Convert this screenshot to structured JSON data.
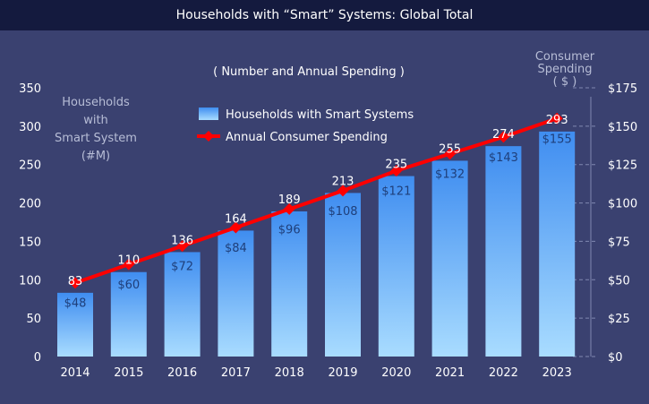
{
  "title": "Households with “Smart” Systems: Global Total",
  "chart_data": {
    "type": "bar",
    "title": "Households with “Smart” Systems: Global Total",
    "subtitle": "( Number and Annual Spending )",
    "categories": [
      "2014",
      "2015",
      "2016",
      "2017",
      "2018",
      "2019",
      "2020",
      "2021",
      "2022",
      "2023"
    ],
    "series": [
      {
        "name": "Households with Smart Systems",
        "type": "bar",
        "axis": "left",
        "values": [
          83,
          110,
          136,
          164,
          189,
          213,
          235,
          255,
          274,
          293
        ],
        "labels": [
          "83",
          "110",
          "136",
          "164",
          "189",
          "213",
          "235",
          "255",
          "274",
          "293"
        ]
      },
      {
        "name": "Annual Consumer Spending",
        "type": "line",
        "axis": "right",
        "values": [
          48,
          60,
          72,
          84,
          96,
          108,
          121,
          132,
          143,
          155
        ],
        "labels": [
          "$48",
          "$60",
          "$72",
          "$84",
          "$96",
          "$108",
          "$121",
          "$132",
          "$143",
          "$155"
        ]
      }
    ],
    "left_axis": {
      "label_lines": [
        "Households",
        "with",
        "Smart System",
        "(#M)"
      ],
      "ylim": [
        0,
        350
      ],
      "ticks": [
        "0",
        "50",
        "100",
        "150",
        "200",
        "250",
        "300",
        "350"
      ]
    },
    "right_axis": {
      "label_lines": [
        "Consumer",
        "Spending",
        "( $ )"
      ],
      "ylim": [
        0,
        175
      ],
      "ticks": [
        "$0",
        "$25",
        "$50",
        "$75",
        "$100",
        "$125",
        "$150",
        "$175"
      ]
    },
    "legend_position": "top-center",
    "colors": {
      "background": "#3a4170",
      "title_bar": "#141a3e",
      "bar_top": "#3f8df0",
      "bar_bottom": "#a9dcff",
      "line": "#ff0000",
      "text": "#ffffff",
      "axis_label": "#b7bdd6",
      "grid": "#8088b0"
    }
  }
}
